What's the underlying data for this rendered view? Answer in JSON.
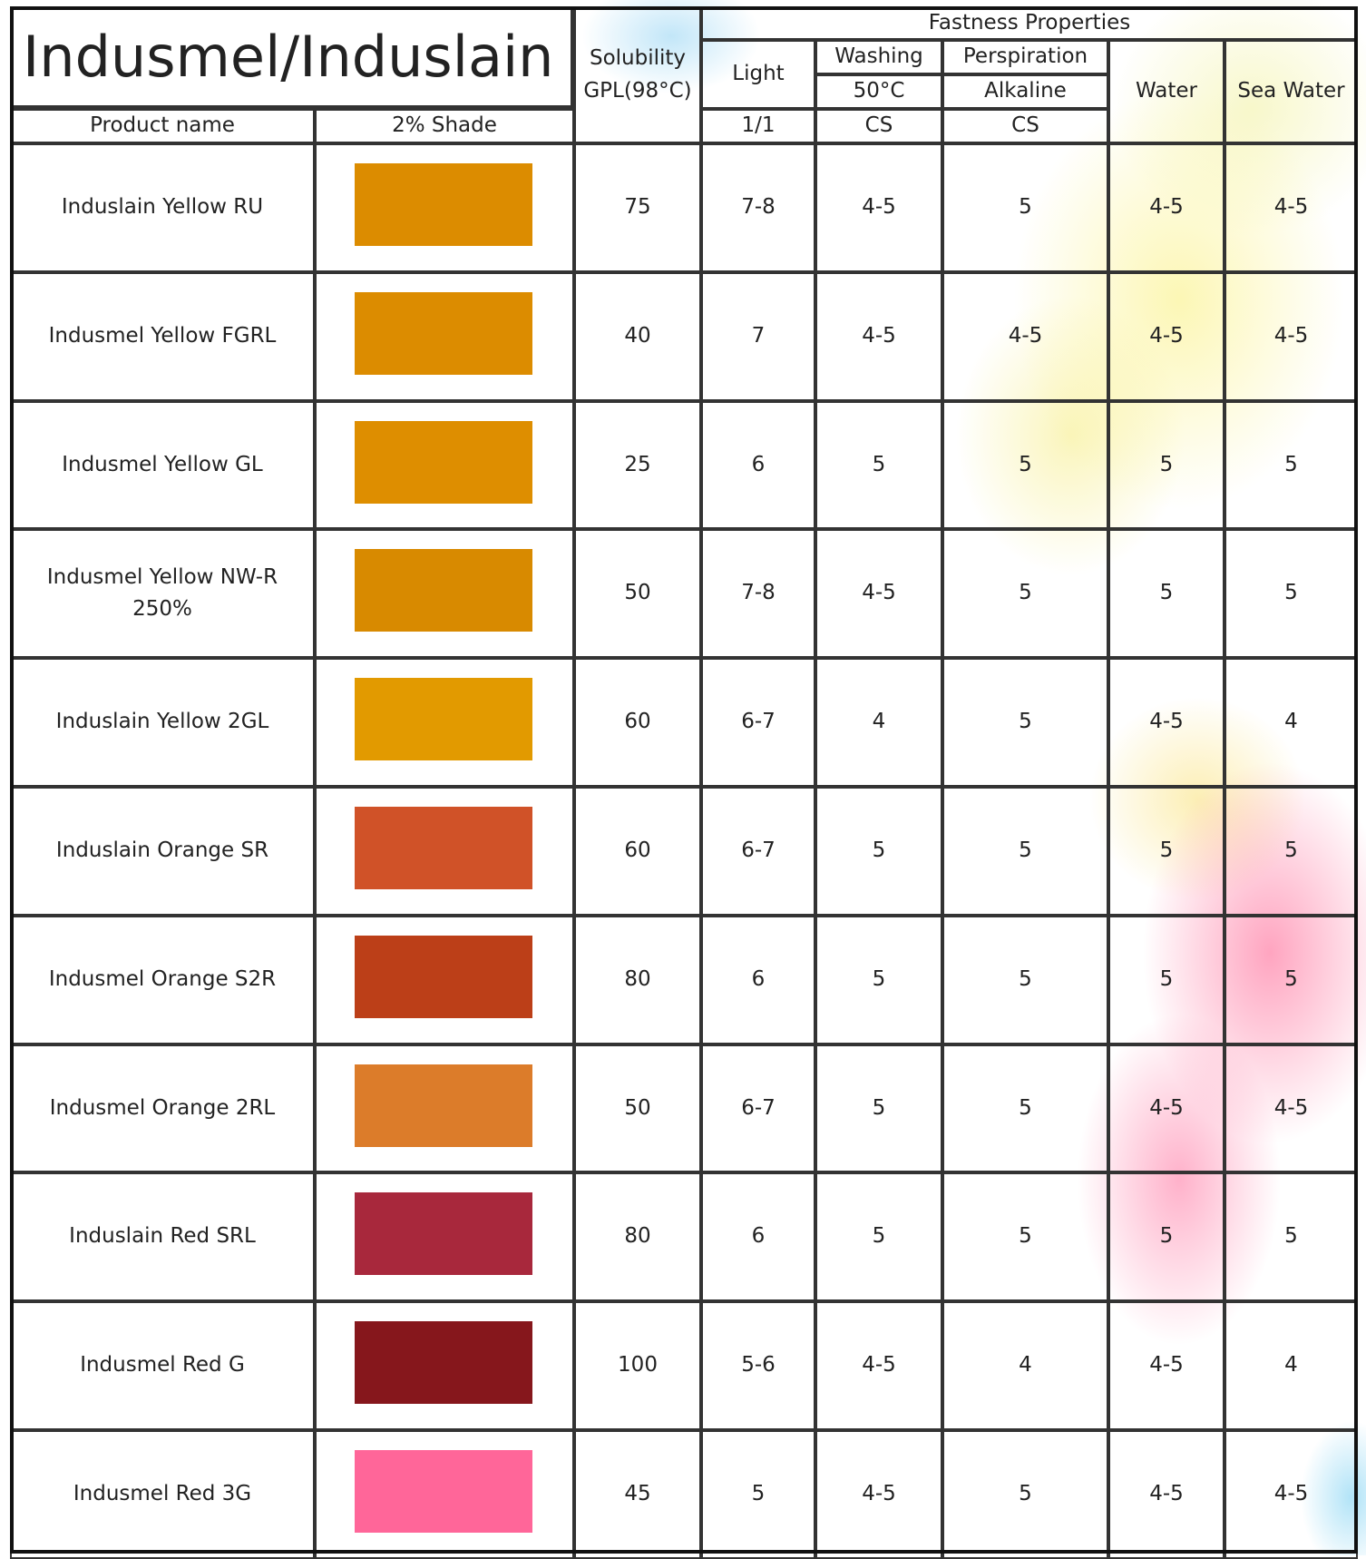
{
  "title": "Indusmel/Induslain",
  "header": {
    "product_name": "Product name",
    "shade": "2% Shade",
    "solubility": "Solubility",
    "solubility_unit": "GPL(98°C)",
    "fastness": "Fastness Properties",
    "light": "Light",
    "light_scale": "1/1",
    "washing": "Washing",
    "washing_temp": "50°C",
    "washing_scale": "CS",
    "perspiration": "Perspiration",
    "perspiration_type": "Alkaline",
    "perspiration_scale": "CS",
    "water": "Water",
    "sea_water": "Sea Water"
  },
  "rows": [
    {
      "product": "Induslain Yellow RU",
      "shade_color": "#dc8c00",
      "solubility": "75",
      "light": "7-8",
      "washing": "4-5",
      "perspiration": "5",
      "water": "4-5",
      "sea_water": "4-5"
    },
    {
      "product": "Indusmel Yellow FGRL",
      "shade_color": "#dc8c00",
      "solubility": "40",
      "light": "7",
      "washing": "4-5",
      "perspiration": "4-5",
      "water": "4-5",
      "sea_water": "4-5"
    },
    {
      "product": "Indusmel Yellow GL",
      "shade_color": "#de8e00",
      "solubility": "25",
      "light": "6",
      "washing": "5",
      "perspiration": "5",
      "water": "5",
      "sea_water": "5"
    },
    {
      "product": "Indusmel Yellow NW-R 250%",
      "shade_color": "#d88a00",
      "solubility": "50",
      "light": "7-8",
      "washing": "4-5",
      "perspiration": "5",
      "water": "5",
      "sea_water": "5"
    },
    {
      "product": "Induslain Yellow 2GL",
      "shade_color": "#e29a00",
      "solubility": "60",
      "light": "6-7",
      "washing": "4",
      "perspiration": "5",
      "water": "4-5",
      "sea_water": "4"
    },
    {
      "product": "Induslain Orange SR",
      "shade_color": "#d05228",
      "solubility": "60",
      "light": "6-7",
      "washing": "5",
      "perspiration": "5",
      "water": "5",
      "sea_water": "5"
    },
    {
      "product": "Indusmel Orange S2R",
      "shade_color": "#bc3f18",
      "solubility": "80",
      "light": "6",
      "washing": "5",
      "perspiration": "5",
      "water": "5",
      "sea_water": "5"
    },
    {
      "product": "Indusmel Orange 2RL",
      "shade_color": "#dc7c2a",
      "solubility": "50",
      "light": "6-7",
      "washing": "5",
      "perspiration": "5",
      "water": "4-5",
      "sea_water": "4-5"
    },
    {
      "product": "Induslain Red SRL",
      "shade_color": "#a8283c",
      "solubility": "80",
      "light": "6",
      "washing": "5",
      "perspiration": "5",
      "water": "5",
      "sea_water": "5"
    },
    {
      "product": "Indusmel Red G",
      "shade_color": "#86171c",
      "solubility": "100",
      "light": "5-6",
      "washing": "4-5",
      "perspiration": "4",
      "water": "4-5",
      "sea_water": "4"
    },
    {
      "product": "Indusmel Red 3G",
      "shade_color": "#ff6699",
      "solubility": "45",
      "light": "5",
      "washing": "4-5",
      "perspiration": "5",
      "water": "4-5",
      "sea_water": "4-5"
    }
  ]
}
